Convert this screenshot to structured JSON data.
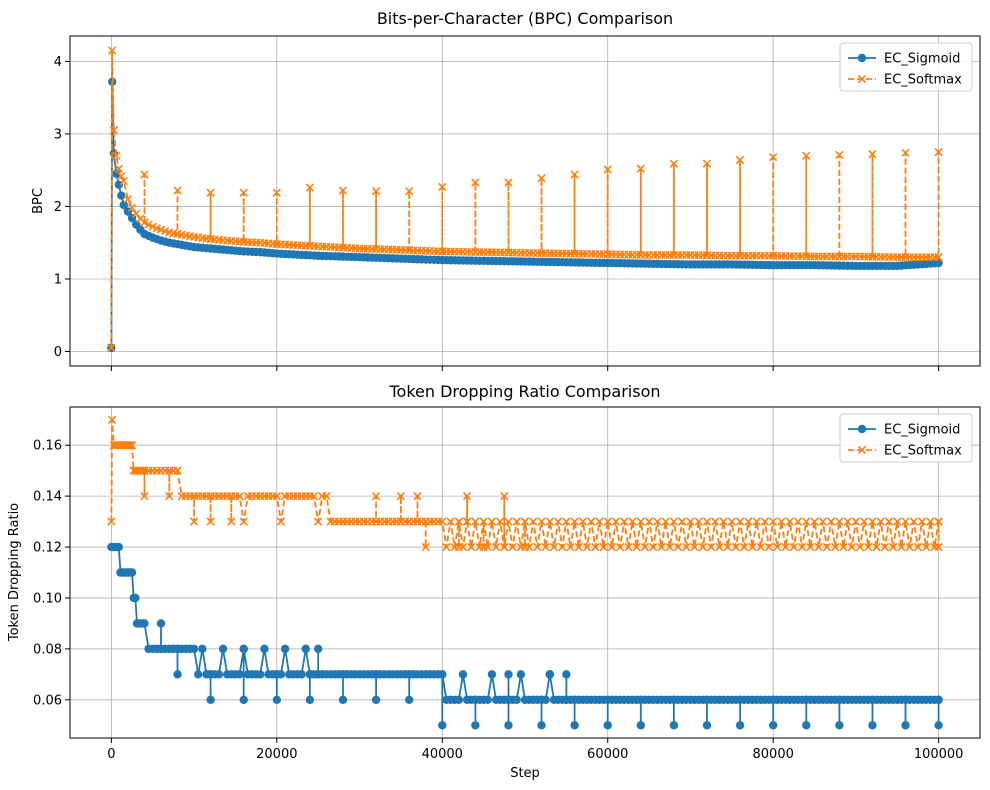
{
  "chart_data": [
    {
      "type": "line",
      "title": "Bits-per-Character (BPC) Comparison",
      "xlabel": "",
      "ylabel": "BPC",
      "xlim": [
        -5000,
        105000
      ],
      "ylim": [
        -0.2,
        4.35
      ],
      "xticks": [
        0,
        20000,
        40000,
        60000,
        80000,
        100000
      ],
      "xtick_labels_visible": false,
      "yticks": [
        0,
        1,
        2,
        3,
        4
      ],
      "ytick_labels": [
        "0",
        "1",
        "2",
        "3",
        "4"
      ],
      "grid": true,
      "legend": "top-right",
      "series": [
        {
          "name": "EC_Sigmoid",
          "color": "#1f77b4",
          "marker": "o",
          "linestyle": "solid",
          "points": [
            [
              0,
              0.05
            ],
            [
              100,
              3.72
            ],
            [
              300,
              2.73
            ],
            [
              600,
              2.45
            ],
            [
              900,
              2.3
            ],
            [
              1200,
              2.15
            ],
            [
              1500,
              2.02
            ],
            [
              2000,
              1.93
            ],
            [
              2500,
              1.84
            ],
            [
              3000,
              1.75
            ],
            [
              3500,
              1.68
            ],
            [
              4000,
              1.62
            ],
            [
              5000,
              1.57
            ],
            [
              6000,
              1.53
            ],
            [
              7000,
              1.5
            ],
            [
              8000,
              1.48
            ],
            [
              10000,
              1.44
            ],
            [
              12000,
              1.42
            ],
            [
              14000,
              1.4
            ],
            [
              16000,
              1.38
            ],
            [
              18000,
              1.37
            ],
            [
              20000,
              1.35
            ],
            [
              25000,
              1.32
            ],
            [
              30000,
              1.3
            ],
            [
              35000,
              1.28
            ],
            [
              40000,
              1.26
            ],
            [
              45000,
              1.25
            ],
            [
              50000,
              1.24
            ],
            [
              55000,
              1.23
            ],
            [
              60000,
              1.22
            ],
            [
              65000,
              1.21
            ],
            [
              70000,
              1.2
            ],
            [
              75000,
              1.2
            ],
            [
              80000,
              1.19
            ],
            [
              85000,
              1.19
            ],
            [
              90000,
              1.18
            ],
            [
              95000,
              1.18
            ],
            [
              100000,
              1.22
            ]
          ]
        },
        {
          "name": "EC_Softmax",
          "color": "#ff7f0e",
          "marker": "x",
          "linestyle": "dashed",
          "points": [
            [
              0,
              0.05
            ],
            [
              100,
              4.15
            ],
            [
              300,
              3.05
            ],
            [
              600,
              2.7
            ],
            [
              900,
              2.52
            ],
            [
              1200,
              2.42
            ],
            [
              1500,
              2.35
            ],
            [
              2000,
              2.1
            ],
            [
              2500,
              1.98
            ],
            [
              3000,
              1.9
            ],
            [
              3500,
              1.83
            ],
            [
              4000,
              1.78
            ],
            [
              5000,
              1.72
            ],
            [
              6000,
              1.68
            ],
            [
              7000,
              1.64
            ],
            [
              8000,
              1.62
            ],
            [
              10000,
              1.58
            ],
            [
              12000,
              1.55
            ],
            [
              14000,
              1.53
            ],
            [
              16000,
              1.51
            ],
            [
              18000,
              1.5
            ],
            [
              20000,
              1.48
            ],
            [
              25000,
              1.45
            ],
            [
              30000,
              1.42
            ],
            [
              35000,
              1.4
            ],
            [
              40000,
              1.38
            ],
            [
              45000,
              1.37
            ],
            [
              50000,
              1.36
            ],
            [
              55000,
              1.35
            ],
            [
              60000,
              1.34
            ],
            [
              65000,
              1.33
            ],
            [
              70000,
              1.33
            ],
            [
              75000,
              1.32
            ],
            [
              80000,
              1.32
            ],
            [
              85000,
              1.31
            ],
            [
              90000,
              1.31
            ],
            [
              95000,
              1.3
            ],
            [
              100000,
              1.3
            ]
          ],
          "spikes": [
            [
              4000,
              2.44
            ],
            [
              8000,
              2.22
            ],
            [
              12000,
              2.19
            ],
            [
              16000,
              2.19
            ],
            [
              20000,
              2.19
            ],
            [
              24000,
              2.26
            ],
            [
              28000,
              2.22
            ],
            [
              32000,
              2.21
            ],
            [
              36000,
              2.21
            ],
            [
              40000,
              2.27
            ],
            [
              44000,
              2.33
            ],
            [
              48000,
              2.33
            ],
            [
              52000,
              2.39
            ],
            [
              56000,
              2.44
            ],
            [
              60000,
              2.51
            ],
            [
              64000,
              2.52
            ],
            [
              68000,
              2.59
            ],
            [
              72000,
              2.59
            ],
            [
              76000,
              2.64
            ],
            [
              80000,
              2.68
            ],
            [
              84000,
              2.7
            ],
            [
              88000,
              2.71
            ],
            [
              92000,
              2.72
            ],
            [
              96000,
              2.74
            ],
            [
              100000,
              2.75
            ]
          ]
        }
      ]
    },
    {
      "type": "line",
      "title": "Token Dropping Ratio Comparison",
      "xlabel": "Step",
      "ylabel": "Token Dropping Ratio",
      "xlim": [
        -5000,
        105000
      ],
      "ylim": [
        0.045,
        0.175
      ],
      "xticks": [
        0,
        20000,
        40000,
        60000,
        80000,
        100000
      ],
      "xtick_labels": [
        "0",
        "20000",
        "40000",
        "60000",
        "80000",
        "100000"
      ],
      "yticks": [
        0.06,
        0.08,
        0.1,
        0.12,
        0.14,
        0.16
      ],
      "ytick_labels": [
        "0.06",
        "0.08",
        "0.10",
        "0.12",
        "0.14",
        "0.16"
      ],
      "grid": true,
      "legend": "top-right",
      "series": [
        {
          "name": "EC_Sigmoid",
          "color": "#1f77b4",
          "marker": "o",
          "linestyle": "solid",
          "levels": [
            [
              0,
              0.12
            ],
            [
              1000,
              0.12
            ],
            [
              1100,
              0.11
            ],
            [
              2500,
              0.11
            ],
            [
              2600,
              0.1
            ],
            [
              2900,
              0.1
            ],
            [
              3000,
              0.09
            ],
            [
              4000,
              0.09
            ],
            [
              4200,
              0.08
            ],
            [
              10000,
              0.08
            ],
            [
              10200,
              0.07
            ],
            [
              40000,
              0.07
            ],
            [
              40200,
              0.06
            ],
            [
              100000,
              0.06
            ]
          ],
          "dips": [
            [
              8000,
              0.07
            ],
            [
              12000,
              0.06
            ],
            [
              16000,
              0.06
            ],
            [
              20000,
              0.06
            ],
            [
              24000,
              0.06
            ],
            [
              28000,
              0.06
            ],
            [
              32000,
              0.06
            ],
            [
              36000,
              0.06
            ],
            [
              40000,
              0.05
            ],
            [
              44000,
              0.05
            ],
            [
              48000,
              0.05
            ],
            [
              52000,
              0.05
            ],
            [
              56000,
              0.05
            ],
            [
              60000,
              0.05
            ],
            [
              64000,
              0.05
            ],
            [
              68000,
              0.05
            ],
            [
              72000,
              0.05
            ],
            [
              76000,
              0.05
            ],
            [
              80000,
              0.05
            ],
            [
              84000,
              0.05
            ],
            [
              88000,
              0.05
            ],
            [
              92000,
              0.05
            ],
            [
              96000,
              0.05
            ],
            [
              100000,
              0.05
            ]
          ],
          "bumps": [
            [
              6000,
              0.09
            ],
            [
              25000,
              0.08
            ],
            [
              48000,
              0.07
            ],
            [
              53000,
              0.07
            ],
            [
              55000,
              0.07
            ]
          ]
        },
        {
          "name": "EC_Softmax",
          "color": "#ff7f0e",
          "marker": "x",
          "linestyle": "dashed",
          "levels": [
            [
              0,
              0.13
            ],
            [
              100,
              0.17
            ],
            [
              300,
              0.16
            ],
            [
              2500,
              0.16
            ],
            [
              2600,
              0.15
            ],
            [
              8000,
              0.15
            ],
            [
              8200,
              0.14
            ],
            [
              26000,
              0.14
            ],
            [
              26200,
              0.13
            ],
            [
              100000,
              0.13
            ]
          ],
          "lows": [
            [
              4000,
              0.14
            ],
            [
              7000,
              0.14
            ],
            [
              10000,
              0.13
            ],
            [
              12000,
              0.13
            ],
            [
              14500,
              0.13
            ],
            [
              38000,
              0.12
            ],
            [
              42000,
              0.12
            ],
            [
              45000,
              0.12
            ],
            [
              50000,
              0.12
            ],
            [
              100000,
              0.12
            ]
          ],
          "highs": [
            [
              32000,
              0.14
            ],
            [
              35000,
              0.14
            ],
            [
              37000,
              0.14
            ],
            [
              43000,
              0.14
            ],
            [
              47500,
              0.14
            ],
            [
              8000,
              0.15
            ],
            [
              1500,
              0.16
            ],
            [
              2000,
              0.16
            ]
          ]
        }
      ]
    }
  ]
}
